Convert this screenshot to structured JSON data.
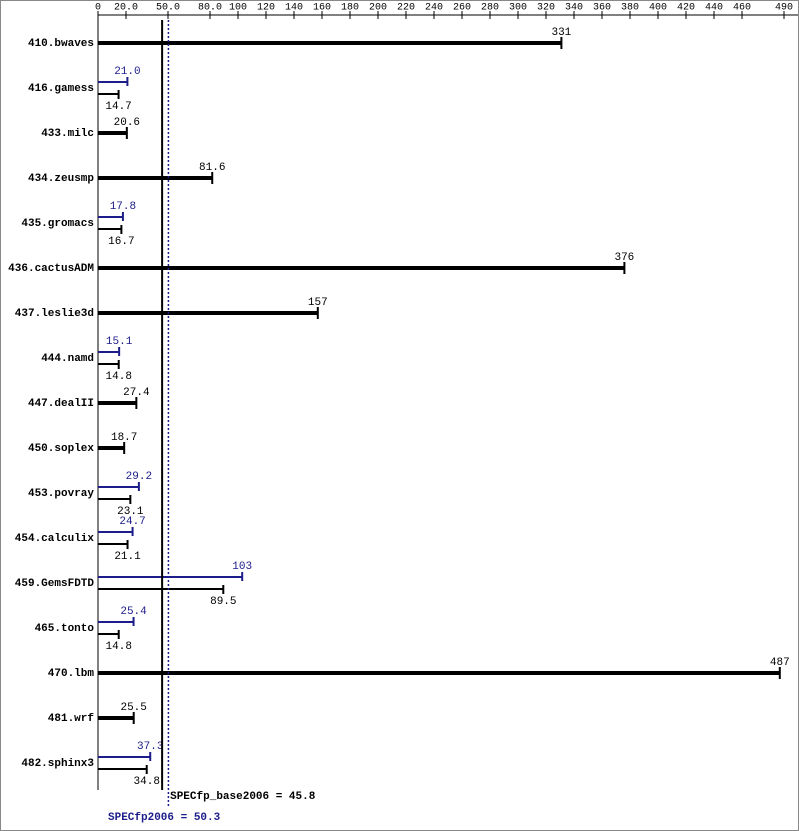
{
  "chart_data": {
    "type": "bar",
    "orientation": "horizontal",
    "categories": [
      "410.bwaves",
      "416.gamess",
      "433.milc",
      "434.zeusmp",
      "435.gromacs",
      "436.cactusADM",
      "437.leslie3d",
      "444.namd",
      "447.dealII",
      "450.soplex",
      "453.povray",
      "454.calculix",
      "459.GemsFDTD",
      "465.tonto",
      "470.lbm",
      "481.wrf",
      "482.sphinx3"
    ],
    "series": [
      {
        "color": "#000000",
        "values": [
          331,
          14.7,
          20.6,
          81.6,
          16.7,
          376,
          157,
          14.8,
          27.4,
          18.7,
          23.1,
          21.1,
          89.5,
          14.8,
          487,
          25.5,
          34.8
        ]
      },
      {
        "color": "#1c1c8a",
        "values": [
          null,
          21.0,
          null,
          null,
          17.8,
          null,
          null,
          15.1,
          null,
          null,
          29.2,
          24.7,
          103,
          25.4,
          null,
          null,
          37.3
        ],
        "value_labels": [
          null,
          "21.0",
          null,
          null,
          "17.8",
          null,
          null,
          "15.1",
          null,
          null,
          "29.2",
          "24.7",
          "103",
          "25.4",
          null,
          null,
          "37.3"
        ]
      }
    ],
    "xlim": [
      0,
      500
    ],
    "xticks": [
      0,
      {
        "value": 20,
        "label": "20.0"
      },
      {
        "value": 50,
        "label": "50.0"
      },
      {
        "value": 80,
        "label": "80.0"
      },
      100,
      120,
      140,
      160,
      180,
      200,
      220,
      240,
      260,
      280,
      300,
      320,
      340,
      360,
      380,
      400,
      420,
      440,
      460,
      490
    ],
    "reference_lines": [
      {
        "label": "SPECfp_base2006 = 45.8",
        "value": 45.8,
        "color": "#000000",
        "style": "solid"
      },
      {
        "label": "SPECfp2006 = 50.3",
        "value": 50.3,
        "color": "#1c1c8a",
        "style": "dotted"
      }
    ]
  }
}
